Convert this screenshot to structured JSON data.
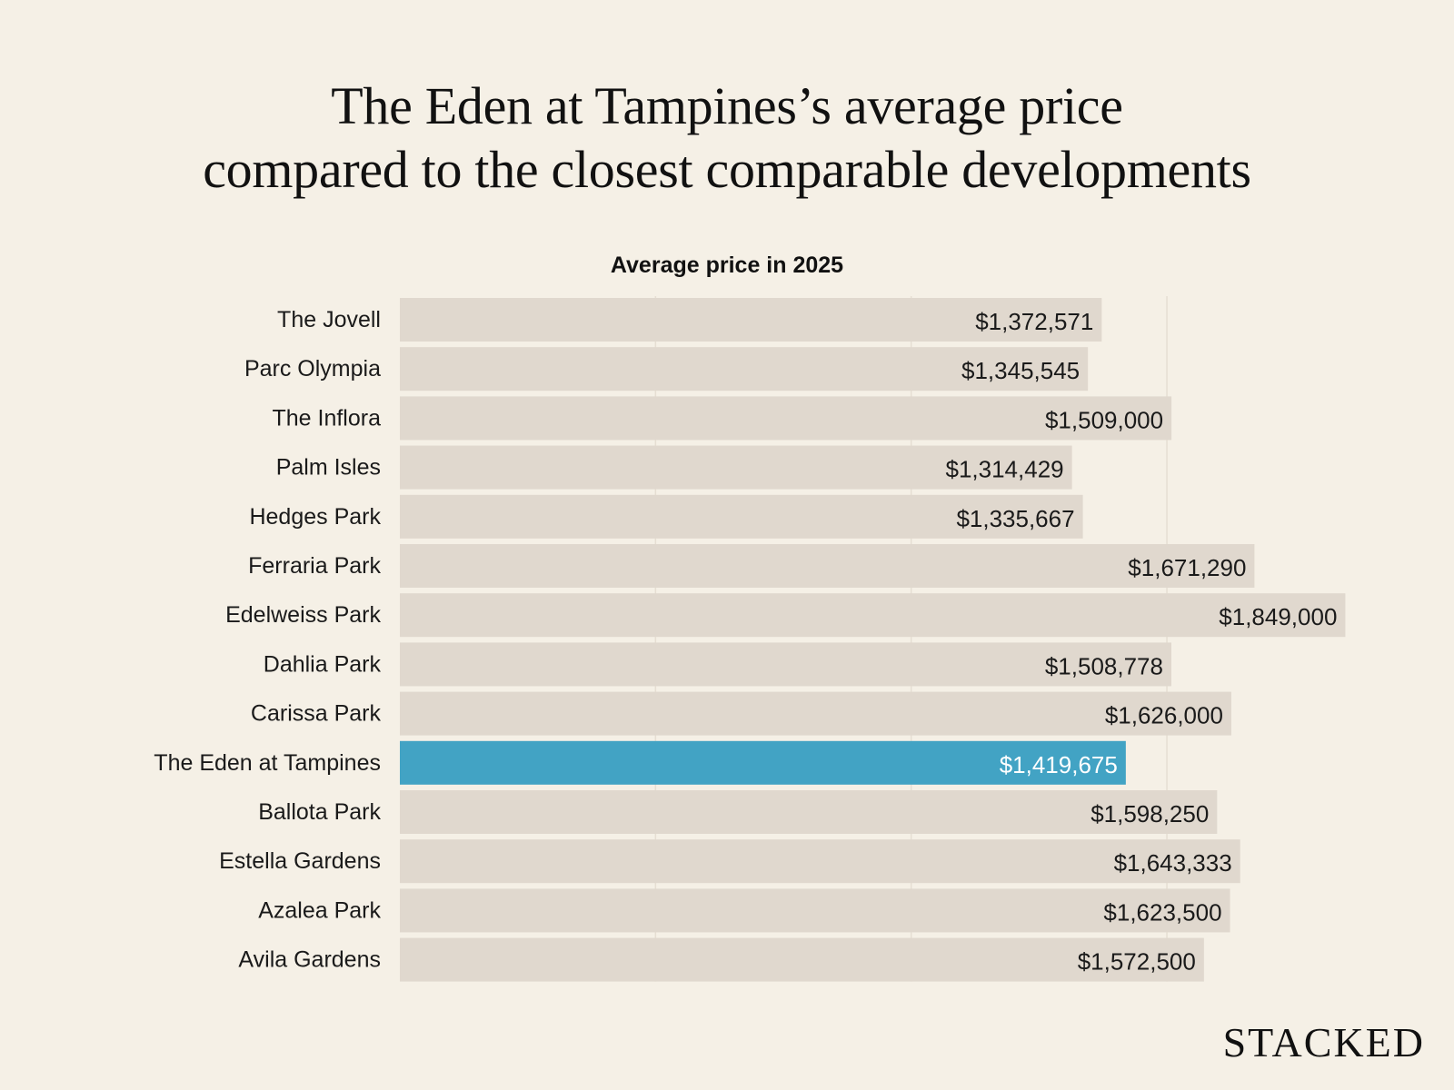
{
  "title_lines": [
    "The Eden at Tampines’s average price",
    "compared to the closest comparable developments"
  ],
  "brand": "STACKED",
  "colors": {
    "background": "#f5f0e6",
    "bar": "#e0d8ce",
    "highlight_bar": "#42a3c4",
    "gridline": "#e6dfd3",
    "label_text": "#1a1a1a",
    "highlight_text": "#ffffff"
  },
  "chart_data": {
    "type": "bar",
    "orientation": "horizontal",
    "title": "Average price in 2025",
    "categories": [
      "The Jovell",
      "Parc Olympia",
      "The Inflora",
      "Palm Isles",
      "Hedges Park",
      "Ferraria Park",
      "Edelweiss Park",
      "Dahlia Park",
      "Carissa Park",
      "The Eden at Tampines",
      "Ballota Park",
      "Estella Gardens",
      "Azalea Park",
      "Avila Gardens"
    ],
    "values": [
      1372571,
      1345545,
      1509000,
      1314429,
      1335667,
      1671290,
      1849000,
      1508778,
      1626000,
      1419675,
      1598250,
      1643333,
      1623500,
      1572500
    ],
    "value_labels": [
      "$1,372,571",
      "$1,345,545",
      "$1,509,000",
      "$1,314,429",
      "$1,335,667",
      "$1,671,290",
      "$1,849,000",
      "$1,508,778",
      "$1,626,000",
      "$1,419,675",
      "$1,598,250",
      "$1,643,333",
      "$1,623,500",
      "$1,572,500"
    ],
    "highlight": "The Eden at Tampines",
    "xlim": [
      0,
      1850000
    ],
    "gridlines": [
      500000,
      1000000,
      1500000
    ],
    "xlabel": "",
    "ylabel": "",
    "grid": true,
    "legend": "none"
  }
}
